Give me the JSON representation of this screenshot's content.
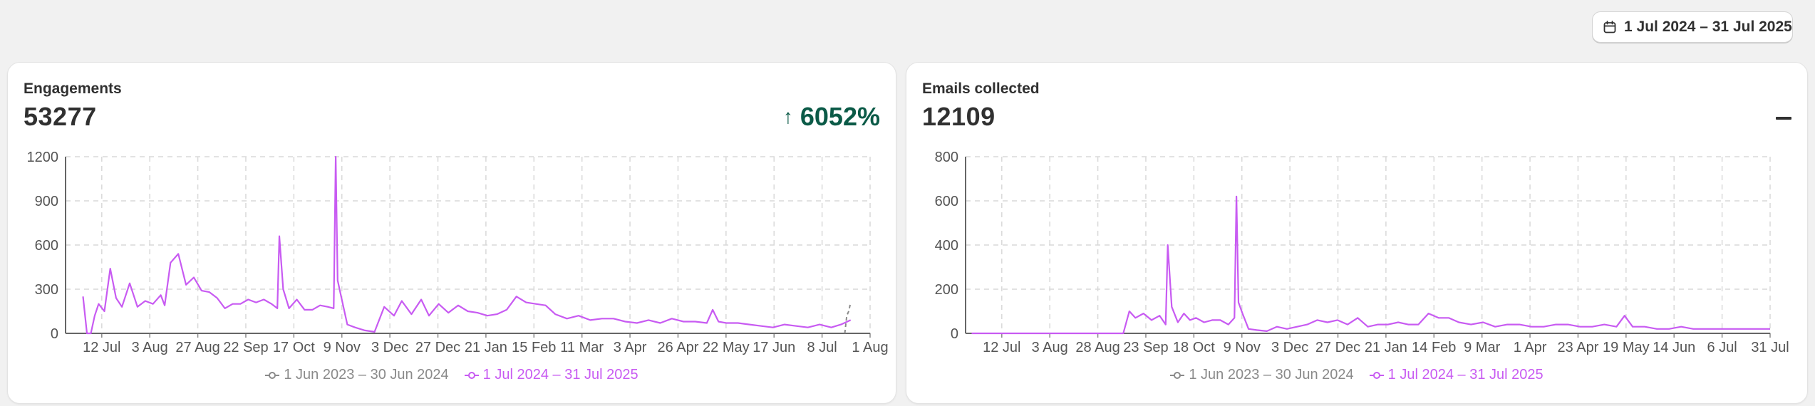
{
  "date_range": {
    "label": "1 Jul 2024 – 31 Jul 2025",
    "icon": "calendar-icon"
  },
  "colors": {
    "current": "#c85bf2",
    "previous": "#8a8a8a",
    "positive": "#0b5a47",
    "grid": "#d9d9d9"
  },
  "cards": [
    {
      "title": "Engagements",
      "value": "53277",
      "change": "6052%",
      "change_direction": "up"
    },
    {
      "title": "Emails collected",
      "value": "12109",
      "change": "–",
      "change_direction": "none"
    }
  ],
  "legend": {
    "previous": "1 Jun 2023 – 30 Jun 2024",
    "current": "1 Jul 2024 – 31 Jul 2025"
  },
  "chart_data": [
    {
      "type": "line",
      "title": "Engagements",
      "ylim": [
        0,
        1200
      ],
      "yticks": [
        "0",
        "300",
        "600",
        "900",
        "1200"
      ],
      "xtick_labels": [
        "12 Jul",
        "3 Aug",
        "27 Aug",
        "22 Sep",
        "17 Oct",
        "9 Nov",
        "3 Dec",
        "27 Dec",
        "21 Jan",
        "15 Feb",
        "11 Mar",
        "3 Apr",
        "26 Apr",
        "22 May",
        "17 Jun",
        "8 Jul",
        "1 Aug"
      ],
      "grid": true,
      "legend_position": "bottom",
      "series": [
        {
          "name": "1 Jun 2023 – 30 Jun 2024",
          "x": [
            "2025-07-28",
            "2025-07-29",
            "2025-07-30",
            "2025-07-31"
          ],
          "y": [
            0,
            120,
            150,
            210
          ]
        },
        {
          "name": "1 Jul 2024 – 31 Jul 2025",
          "x": [
            "2024-07-01",
            "2024-07-03",
            "2024-07-05",
            "2024-07-07",
            "2024-07-09",
            "2024-07-12",
            "2024-07-15",
            "2024-07-18",
            "2024-07-21",
            "2024-07-25",
            "2024-07-29",
            "2024-08-02",
            "2024-08-06",
            "2024-08-10",
            "2024-08-12",
            "2024-08-15",
            "2024-08-19",
            "2024-08-23",
            "2024-08-27",
            "2024-08-31",
            "2024-09-04",
            "2024-09-08",
            "2024-09-12",
            "2024-09-16",
            "2024-09-20",
            "2024-09-24",
            "2024-09-28",
            "2024-10-02",
            "2024-10-06",
            "2024-10-09",
            "2024-10-10",
            "2024-10-12",
            "2024-10-15",
            "2024-10-19",
            "2024-10-23",
            "2024-10-27",
            "2024-10-31",
            "2024-11-04",
            "2024-11-07",
            "2024-11-08",
            "2024-11-09",
            "2024-11-11",
            "2024-11-14",
            "2024-11-18",
            "2024-11-23",
            "2024-11-28",
            "2024-12-03",
            "2024-12-08",
            "2024-12-12",
            "2024-12-17",
            "2024-12-22",
            "2024-12-26",
            "2024-12-31",
            "2025-01-05",
            "2025-01-10",
            "2025-01-15",
            "2025-01-20",
            "2025-01-25",
            "2025-01-30",
            "2025-02-04",
            "2025-02-09",
            "2025-02-14",
            "2025-02-19",
            "2025-02-24",
            "2025-03-01",
            "2025-03-07",
            "2025-03-13",
            "2025-03-19",
            "2025-03-25",
            "2025-03-31",
            "2025-04-06",
            "2025-04-12",
            "2025-04-18",
            "2025-04-24",
            "2025-04-30",
            "2025-05-06",
            "2025-05-12",
            "2025-05-18",
            "2025-05-21",
            "2025-05-24",
            "2025-05-28",
            "2025-06-03",
            "2025-06-09",
            "2025-06-15",
            "2025-06-21",
            "2025-06-27",
            "2025-07-03",
            "2025-07-09",
            "2025-07-15",
            "2025-07-21",
            "2025-07-26",
            "2025-07-31"
          ],
          "y": [
            250,
            0,
            0,
            120,
            200,
            150,
            440,
            240,
            180,
            340,
            180,
            220,
            200,
            260,
            190,
            480,
            540,
            330,
            380,
            290,
            280,
            240,
            170,
            200,
            200,
            230,
            210,
            230,
            200,
            170,
            660,
            300,
            170,
            230,
            160,
            160,
            190,
            180,
            170,
            1200,
            360,
            240,
            60,
            40,
            20,
            10,
            180,
            120,
            220,
            130,
            230,
            120,
            200,
            140,
            190,
            150,
            140,
            120,
            130,
            160,
            250,
            210,
            200,
            190,
            130,
            100,
            120,
            90,
            100,
            100,
            80,
            70,
            90,
            70,
            100,
            80,
            80,
            70,
            160,
            80,
            70,
            70,
            60,
            50,
            40,
            60,
            50,
            40,
            60,
            40,
            60,
            90
          ]
        }
      ]
    },
    {
      "type": "line",
      "title": "Emails collected",
      "ylim": [
        0,
        800
      ],
      "yticks": [
        "0",
        "200",
        "400",
        "600",
        "800"
      ],
      "xtick_labels": [
        "12 Jul",
        "3 Aug",
        "28 Aug",
        "23 Sep",
        "18 Oct",
        "9 Nov",
        "3 Dec",
        "27 Dec",
        "21 Jan",
        "14 Feb",
        "9 Mar",
        "1 Apr",
        "23 Apr",
        "19 May",
        "14 Jun",
        "6 Jul",
        "31 Jul"
      ],
      "grid": true,
      "legend_position": "bottom",
      "series": [
        {
          "name": "1 Jun 2023 – 30 Jun 2024",
          "x": [],
          "y": []
        },
        {
          "name": "1 Jul 2024 – 31 Jul 2025",
          "x": [
            "2024-07-01",
            "2024-08-01",
            "2024-09-01",
            "2024-09-14",
            "2024-09-17",
            "2024-09-20",
            "2024-09-24",
            "2024-09-28",
            "2024-10-02",
            "2024-10-05",
            "2024-10-06",
            "2024-10-08",
            "2024-10-11",
            "2024-10-14",
            "2024-10-17",
            "2024-10-20",
            "2024-10-24",
            "2024-10-28",
            "2024-11-01",
            "2024-11-05",
            "2024-11-08",
            "2024-11-09",
            "2024-11-10",
            "2024-11-12",
            "2024-11-15",
            "2024-11-19",
            "2024-11-24",
            "2024-11-29",
            "2024-12-04",
            "2024-12-09",
            "2024-12-14",
            "2024-12-19",
            "2024-12-24",
            "2024-12-29",
            "2025-01-03",
            "2025-01-08",
            "2025-01-13",
            "2025-01-18",
            "2025-01-23",
            "2025-01-28",
            "2025-02-02",
            "2025-02-07",
            "2025-02-12",
            "2025-02-17",
            "2025-02-22",
            "2025-02-27",
            "2025-03-05",
            "2025-03-11",
            "2025-03-17",
            "2025-03-23",
            "2025-03-29",
            "2025-04-04",
            "2025-04-10",
            "2025-04-16",
            "2025-04-22",
            "2025-04-28",
            "2025-05-04",
            "2025-05-10",
            "2025-05-16",
            "2025-05-20",
            "2025-05-24",
            "2025-05-30",
            "2025-06-05",
            "2025-06-11",
            "2025-06-17",
            "2025-06-23",
            "2025-06-29",
            "2025-07-05",
            "2025-07-11",
            "2025-07-17",
            "2025-07-23",
            "2025-07-31"
          ],
          "y": [
            0,
            0,
            0,
            0,
            100,
            70,
            90,
            60,
            80,
            40,
            400,
            120,
            50,
            90,
            60,
            70,
            50,
            60,
            60,
            40,
            70,
            620,
            140,
            90,
            20,
            15,
            10,
            30,
            20,
            30,
            40,
            60,
            50,
            60,
            40,
            70,
            30,
            40,
            40,
            50,
            40,
            40,
            90,
            70,
            70,
            50,
            40,
            50,
            30,
            40,
            40,
            30,
            30,
            40,
            40,
            30,
            30,
            40,
            30,
            80,
            30,
            30,
            20,
            20,
            30,
            20,
            20,
            20,
            20,
            20,
            20,
            20
          ]
        }
      ]
    }
  ]
}
